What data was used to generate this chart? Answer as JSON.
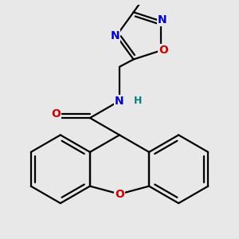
{
  "background_color": "#e8e8e8",
  "figsize": [
    3.0,
    3.0
  ],
  "dpi": 100,
  "bond_color": "#000000",
  "bond_width": 1.6,
  "atom_colors": {
    "C": "#000000",
    "N": "#0000cc",
    "O": "#cc0000",
    "H": "#008080"
  },
  "font_size": 10,
  "font_size_small": 9
}
